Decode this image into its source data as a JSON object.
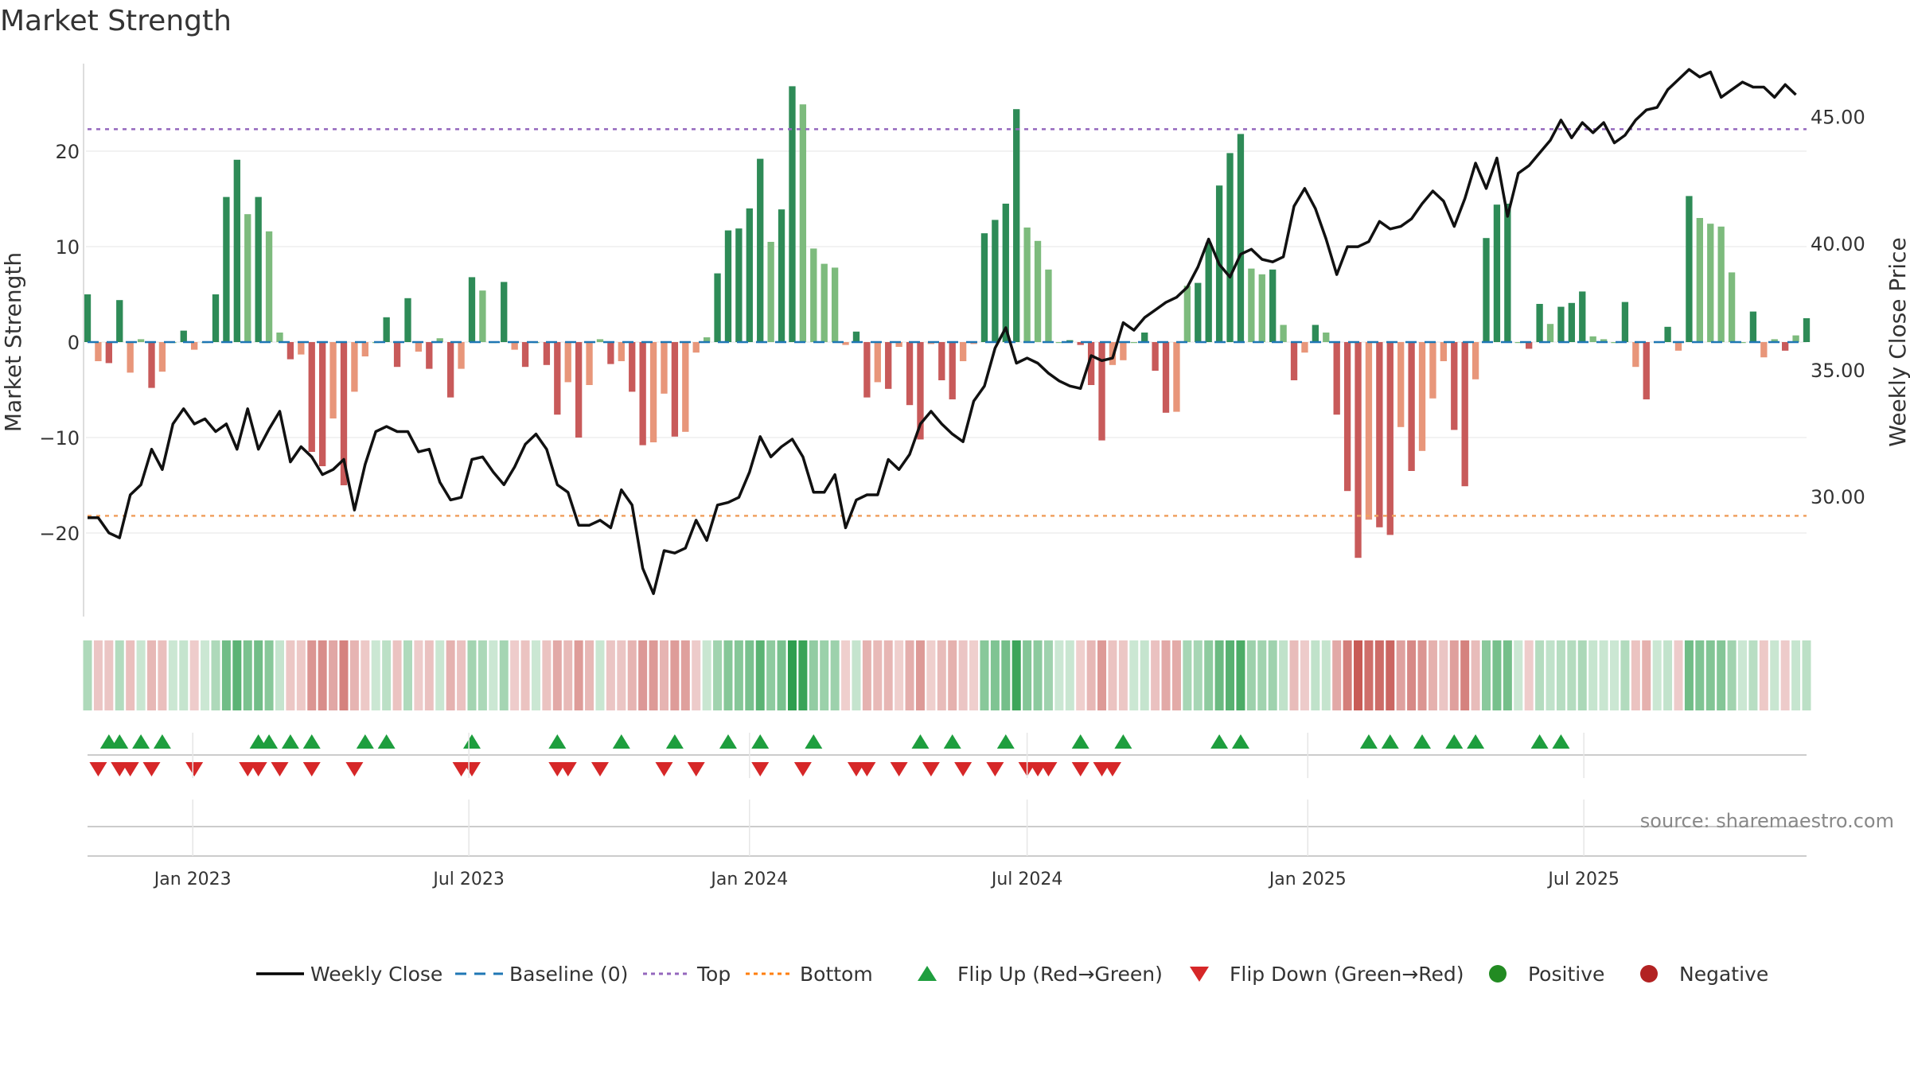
{
  "title": "Market Strength",
  "source": "source: sharemaestro.com",
  "chart_data": {
    "type": "bar",
    "x_start": "2022-10-24",
    "x_step_days": 7,
    "ylabel_left": "Market Strength",
    "ylabel_right": "Weekly Close Price",
    "yticks_left": [
      20,
      10,
      0,
      -10,
      -20
    ],
    "yticks_right": [
      45,
      40,
      35,
      30
    ],
    "xticks": [
      {
        "label": "Jan 2023",
        "date": "2023-01-01"
      },
      {
        "label": "Jul 2023",
        "date": "2023-07-01"
      },
      {
        "label": "Jan 2024",
        "date": "2024-01-01"
      },
      {
        "label": "Jul 2024",
        "date": "2024-07-01"
      },
      {
        "label": "Jan 2025",
        "date": "2025-01-01"
      },
      {
        "label": "Jul 2025",
        "date": "2025-07-01"
      }
    ],
    "ylim_left": [
      -29,
      27.5
    ],
    "ylim_right": [
      25.2,
      46.5
    ],
    "top_line": 22.3,
    "bottom_line": -18.2,
    "strength": [
      5,
      -2,
      -2.2,
      4.4,
      -3.2,
      0.3,
      -4.8,
      -3.1,
      0,
      1.2,
      -0.8,
      0,
      5,
      15.2,
      19.1,
      13.4,
      15.2,
      11.6,
      1,
      -1.8,
      -1.3,
      -11.5,
      -13,
      -8,
      -15,
      -5.2,
      -1.5,
      0,
      2.6,
      -2.6,
      4.6,
      -1,
      -2.8,
      0.4,
      -5.8,
      -2.8,
      6.8,
      5.4,
      0,
      6.3,
      -0.8,
      -2.6,
      0,
      -2.4,
      -7.6,
      -4.2,
      -10,
      -4.5,
      0.3,
      -2.3,
      -2,
      -5.2,
      -10.8,
      -10.5,
      -5.4,
      -9.9,
      -9.4,
      -1.1,
      0.5,
      7.2,
      11.7,
      11.9,
      14,
      19.2,
      10.5,
      13.9,
      26.8,
      24.9,
      9.8,
      8.2,
      7.8,
      -0.3,
      1.1,
      -5.8,
      -4.2,
      -4.9,
      -0.5,
      -6.6,
      -10.2,
      -0.2,
      -4,
      -6,
      -2,
      -0.2,
      11.4,
      12.8,
      14.5,
      24.4,
      12,
      10.6,
      7.6,
      0,
      0.2,
      -0.3,
      -4.5,
      -10.3,
      -2.4,
      -1.9,
      0,
      1,
      -3,
      -7.4,
      -7.3,
      5.9,
      6.2,
      10.4,
      16.4,
      19.8,
      21.8,
      7.7,
      7.1,
      7.6,
      1.8,
      -4,
      -1.1,
      1.8,
      1,
      -7.6,
      -15.6,
      -22.6,
      -18.6,
      -19.4,
      -20.2,
      -8.9,
      -13.5,
      -11.4,
      -5.9,
      -2,
      -9.2,
      -15.1,
      -3.9,
      10.9,
      14.4,
      14.5,
      0,
      -0.7,
      4,
      1.9,
      3.7,
      4.1,
      5.3,
      0.6,
      0.3,
      0,
      4.2,
      -2.6,
      -6,
      0,
      1.6,
      -0.9,
      15.3,
      13,
      12.4,
      12.1,
      7.3,
      0,
      3.2,
      -1.6,
      0.3,
      -0.9,
      0.7,
      2.5
    ],
    "close": [
      29.2,
      29.2,
      28.6,
      28.4,
      30.1,
      30.5,
      31.9,
      31.1,
      32.9,
      33.5,
      32.9,
      33.1,
      32.6,
      32.9,
      31.9,
      33.5,
      31.9,
      32.7,
      33.4,
      31.4,
      32,
      31.6,
      30.9,
      31.1,
      31.5,
      29.5,
      31.3,
      32.6,
      32.8,
      32.6,
      32.6,
      31.8,
      31.9,
      30.6,
      29.9,
      30,
      31.5,
      31.6,
      31,
      30.5,
      31.2,
      32.1,
      32.5,
      31.9,
      30.5,
      30.2,
      28.9,
      28.9,
      29.1,
      28.8,
      30.3,
      29.7,
      27.2,
      26.2,
      27.9,
      27.8,
      28,
      29.1,
      28.3,
      29.7,
      29.8,
      30,
      31,
      32.4,
      31.6,
      32,
      32.3,
      31.6,
      30.2,
      30.2,
      30.9,
      28.8,
      29.9,
      30.1,
      30.1,
      31.5,
      31.1,
      31.7,
      32.9,
      33.4,
      32.9,
      32.5,
      32.2,
      33.8,
      34.4,
      35.9,
      36.7,
      35.3,
      35.5,
      35.3,
      34.9,
      34.6,
      34.4,
      34.3,
      35.6,
      35.4,
      35.5,
      36.9,
      36.6,
      37.1,
      37.4,
      37.7,
      37.9,
      38.3,
      39.1,
      40.2,
      39.2,
      38.7,
      39.6,
      39.8,
      39.4,
      39.3,
      39.5,
      41.5,
      42.2,
      41.4,
      40.2,
      38.8,
      39.9,
      39.9,
      40.1,
      40.9,
      40.6,
      40.7,
      41,
      41.6,
      42.1,
      41.7,
      40.7,
      41.8,
      43.2,
      42.2,
      43.4,
      41.1,
      42.8,
      43.1,
      43.6,
      44.1,
      44.9,
      44.2,
      44.8,
      44.4,
      44.8,
      44,
      44.3,
      44.9,
      45.3,
      45.4,
      46.1,
      46.5,
      46.9,
      46.6,
      46.8,
      45.8,
      46.1,
      46.4,
      46.2,
      46.2,
      45.8,
      46.3,
      45.9
    ],
    "flip_up": [
      2,
      3,
      5,
      7,
      16,
      17,
      19,
      21,
      26,
      28,
      36,
      44,
      50,
      55,
      60,
      63,
      68,
      78,
      81,
      86,
      93,
      97,
      106,
      108,
      120,
      122,
      125,
      128,
      130,
      136,
      138
    ],
    "flip_down": [
      1,
      3,
      4,
      6,
      10,
      15,
      16,
      18,
      21,
      25,
      35,
      36,
      44,
      45,
      48,
      54,
      57,
      63,
      67,
      72,
      73,
      76,
      79,
      82,
      85,
      88,
      89,
      90,
      93,
      95,
      96
    ]
  },
  "heat": {
    "colors": {
      "pos_dark": "#2e8b57",
      "pos_light": "#7dbb7d",
      "neg_dark": "#c85a5a",
      "neg_light": "#e8967a"
    }
  },
  "legend": [
    {
      "label": "Weekly Close",
      "type": "line",
      "color": "#000000"
    },
    {
      "label": "Baseline (0)",
      "type": "dash",
      "color": "#1f77b4"
    },
    {
      "label": "Top",
      "type": "dot",
      "color": "#9467bd"
    },
    {
      "label": "Bottom",
      "type": "dot",
      "color": "#ff7f0e"
    },
    {
      "label": "Flip Up (Red→Green)",
      "type": "tri-up",
      "color": "#1e9e3e"
    },
    {
      "label": "Flip Down (Green→Red)",
      "type": "tri-down",
      "color": "#d62728"
    },
    {
      "label": "Positive",
      "type": "circle",
      "color": "#228b22"
    },
    {
      "label": "Negative",
      "type": "circle",
      "color": "#b22222"
    }
  ],
  "colors": {
    "pos_dark": "#2e8b57",
    "pos_light": "#7dbb7d",
    "neg_dark": "#c85a5a",
    "neg_light": "#e8967a",
    "close": "#111111",
    "baseline": "#1f77b4",
    "top": "#9467bd",
    "bottom": "#f0a060"
  }
}
